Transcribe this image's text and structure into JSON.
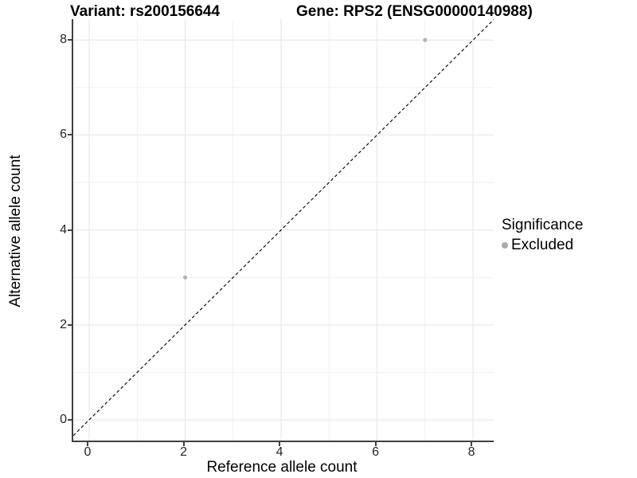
{
  "titles": {
    "variant": "Variant: rs200156644",
    "gene": "Gene: RPS2 (ENSG00000140988)"
  },
  "chart_data": {
    "type": "scatter",
    "title_left": "Variant: rs200156644",
    "title_right": "Gene: RPS2 (ENSG00000140988)",
    "xlabel": "Reference allele count",
    "ylabel": "Alternative allele count",
    "xlim": [
      -0.332,
      8.43
    ],
    "ylim": [
      -0.436,
      8.44
    ],
    "x_ticks": [
      0,
      2,
      4,
      6,
      8
    ],
    "y_ticks": [
      0,
      2,
      4,
      6,
      8
    ],
    "x_minor_ticks": [
      1,
      3,
      5,
      7
    ],
    "y_minor_ticks": [
      1,
      3,
      5,
      7
    ],
    "grid": "on",
    "legend_position": "right",
    "reference_line": {
      "type": "identity y=x",
      "style": "dashed",
      "color": "#111111"
    },
    "series": [
      {
        "name": "Excluded",
        "color": "#b4b4b4",
        "points": [
          {
            "x": 2,
            "y": 3
          },
          {
            "x": 7,
            "y": 8
          }
        ]
      }
    ],
    "legend": {
      "title": "Significance",
      "entries": [
        {
          "label": "Excluded",
          "color": "#ababab"
        }
      ]
    }
  },
  "colors": {
    "background": "#ffffff",
    "grid_major": "#e4e4e4",
    "grid_minor": "#efefef",
    "axis_line": "#404040",
    "point": "#b4b4b4",
    "legend_key": "#ababab",
    "reference_line": "#111111",
    "tick_label": "#262626"
  }
}
